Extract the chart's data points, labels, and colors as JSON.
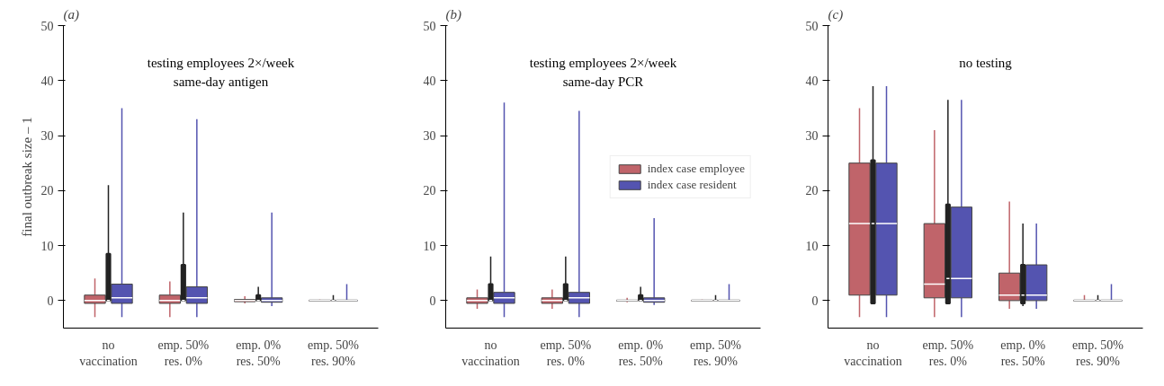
{
  "chart_data": [
    {
      "type": "box",
      "title": "(a)",
      "subtitle": "testing employees 2×/week\nsame-day antigen",
      "ylabel": "final outbreak size – 1",
      "categories": [
        "no\nvaccination",
        "emp. 50%\nres. 0%",
        "emp. 0%\nres. 50%",
        "emp. 50%\nres. 90%"
      ],
      "ylim": [
        -5,
        50
      ],
      "yticks": [
        0,
        10,
        20,
        30,
        40,
        50
      ],
      "grid": false,
      "color": "#222222",
      "boxes": [
        {
          "low": 0,
          "q1": 0,
          "median": 0,
          "q3": 8.5,
          "high": 21
        },
        {
          "low": 0,
          "q1": 0,
          "median": 0,
          "q3": 6.5,
          "high": 16
        },
        {
          "low": 0,
          "q1": 0,
          "median": 0,
          "q3": 1,
          "high": 2.5
        },
        {
          "low": 0,
          "q1": 0,
          "median": 0,
          "q3": 0,
          "high": 1
        }
      ],
      "series": [
        {
          "color": "#c0646a",
          "boxes": [
            {
              "low": -3,
              "q1": -0.5,
              "median": 0,
              "q3": 1,
              "high": 4
            },
            {
              "low": -3,
              "q1": -0.5,
              "median": 0,
              "q3": 1,
              "high": 3.5
            },
            {
              "low": -0.5,
              "q1": -0.2,
              "median": 0,
              "q3": 0.2,
              "high": 0.8
            },
            {
              "low": -0.2,
              "q1": -0.1,
              "median": 0,
              "q3": 0.1,
              "high": 0.2
            }
          ]
        },
        {
          "color": "#5454b0",
          "boxes": [
            {
              "low": -3,
              "q1": -0.5,
              "median": 0.5,
              "q3": 3,
              "high": 35
            },
            {
              "low": -3,
              "q1": -0.5,
              "median": 0.5,
              "q3": 2.5,
              "high": 33
            },
            {
              "low": -1,
              "q1": -0.3,
              "median": 0,
              "q3": 0.5,
              "high": 16
            },
            {
              "low": -0.2,
              "q1": -0.1,
              "median": 0,
              "q3": 0.1,
              "high": 3
            }
          ]
        }
      ]
    },
    {
      "type": "box",
      "title": "(b)",
      "subtitle": "testing employees 2×/week\nsame-day PCR",
      "categories": [
        "no\nvaccination",
        "emp. 50%\nres. 0%",
        "emp. 0%\nres. 50%",
        "emp. 50%\nres. 90%"
      ],
      "ylim": [
        -5,
        50
      ],
      "yticks": [
        0,
        10,
        20,
        30,
        40,
        50
      ],
      "grid": false,
      "legend": "right",
      "color": "#222222",
      "boxes": [
        {
          "low": 0,
          "q1": 0,
          "median": 0,
          "q3": 3,
          "high": 8
        },
        {
          "low": 0,
          "q1": 0,
          "median": 0,
          "q3": 3,
          "high": 8
        },
        {
          "low": 0,
          "q1": 0,
          "median": 0,
          "q3": 1,
          "high": 2.5
        },
        {
          "low": 0,
          "q1": 0,
          "median": 0,
          "q3": 0,
          "high": 1
        }
      ],
      "series": [
        {
          "name": "index case employee",
          "color": "#c0646a",
          "boxes": [
            {
              "low": -1.5,
              "q1": -0.5,
              "median": 0,
              "q3": 0.5,
              "high": 2
            },
            {
              "low": -1.5,
              "q1": -0.5,
              "median": 0,
              "q3": 0.5,
              "high": 2
            },
            {
              "low": -0.3,
              "q1": -0.1,
              "median": 0,
              "q3": 0.1,
              "high": 0.5
            },
            {
              "low": -0.2,
              "q1": -0.1,
              "median": 0,
              "q3": 0.1,
              "high": 0.2
            }
          ]
        },
        {
          "name": "index case resident",
          "color": "#5454b0",
          "boxes": [
            {
              "low": -3,
              "q1": -0.5,
              "median": 0.5,
              "q3": 1.5,
              "high": 36
            },
            {
              "low": -3,
              "q1": -0.5,
              "median": 0.5,
              "q3": 1.5,
              "high": 34.5
            },
            {
              "low": -0.8,
              "q1": -0.3,
              "median": 0,
              "q3": 0.5,
              "high": 15
            },
            {
              "low": -0.2,
              "q1": -0.1,
              "median": 0,
              "q3": 0.1,
              "high": 3
            }
          ]
        }
      ]
    },
    {
      "type": "box",
      "title": "(c)",
      "subtitle": "no testing",
      "categories": [
        "no\nvaccination",
        "emp. 50%\nres. 0%",
        "emp. 0%\nres. 50%",
        "emp. 50%\nres. 90%"
      ],
      "ylim": [
        -5,
        50
      ],
      "yticks": [
        0,
        10,
        20,
        30,
        40,
        50
      ],
      "grid": false,
      "color": "#222222",
      "boxes": [
        {
          "low": -0.5,
          "q1": -0.5,
          "median": 14,
          "q3": 25.5,
          "high": 39
        },
        {
          "low": -0.5,
          "q1": -0.5,
          "median": 4,
          "q3": 17.5,
          "high": 36.5
        },
        {
          "low": -1,
          "q1": -0.5,
          "median": 1,
          "q3": 6.5,
          "high": 14
        },
        {
          "low": 0,
          "q1": 0,
          "median": 0,
          "q3": 0,
          "high": 1
        }
      ],
      "series": [
        {
          "color": "#c0646a",
          "boxes": [
            {
              "low": -3,
              "q1": 1,
              "median": 14,
              "q3": 25,
              "high": 35
            },
            {
              "low": -3,
              "q1": 0.5,
              "median": 3,
              "q3": 14,
              "high": 31
            },
            {
              "low": -1.5,
              "q1": 0,
              "median": 1,
              "q3": 5,
              "high": 18
            },
            {
              "low": -0.2,
              "q1": -0.1,
              "median": 0,
              "q3": 0.1,
              "high": 1
            }
          ]
        },
        {
          "color": "#5454b0",
          "boxes": [
            {
              "low": -3,
              "q1": 1,
              "median": 14,
              "q3": 25,
              "high": 39
            },
            {
              "low": -3,
              "q1": 0.5,
              "median": 4,
              "q3": 17,
              "high": 36.5
            },
            {
              "low": -1.5,
              "q1": 0,
              "median": 1,
              "q3": 6.5,
              "high": 14
            },
            {
              "low": -0.2,
              "q1": -0.1,
              "median": 0,
              "q3": 0.1,
              "high": 3
            }
          ]
        }
      ]
    }
  ]
}
